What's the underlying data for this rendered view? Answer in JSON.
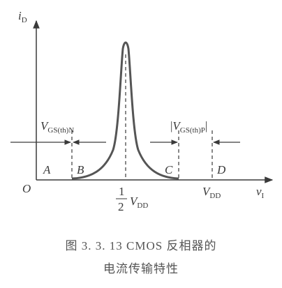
{
  "caption": {
    "line1": "图 3. 3. 13   CMOS 反相器的",
    "line2": "电流传输特性"
  },
  "diagram": {
    "y_axis_main": "i",
    "y_axis_sub": "D",
    "x_axis_main": "v",
    "x_axis_sub": "I",
    "origin": "O",
    "mid_num": "1",
    "mid_den": "2",
    "mid_main": "V",
    "mid_sub": "DD",
    "vdd_main": "V",
    "vdd_sub": "DD",
    "vgsn_main": "V",
    "vgsn_sub": "GS(th)N",
    "vgsp_bar_left": "|",
    "vgsp_main": "V",
    "vgsp_sub": "GS(th)P",
    "vgsp_bar_right": "|",
    "region_a": "A",
    "region_b": "B",
    "region_c": "C",
    "region_d": "D"
  },
  "colors": {
    "ink": "#3a3a3a",
    "curve": "#555555"
  }
}
